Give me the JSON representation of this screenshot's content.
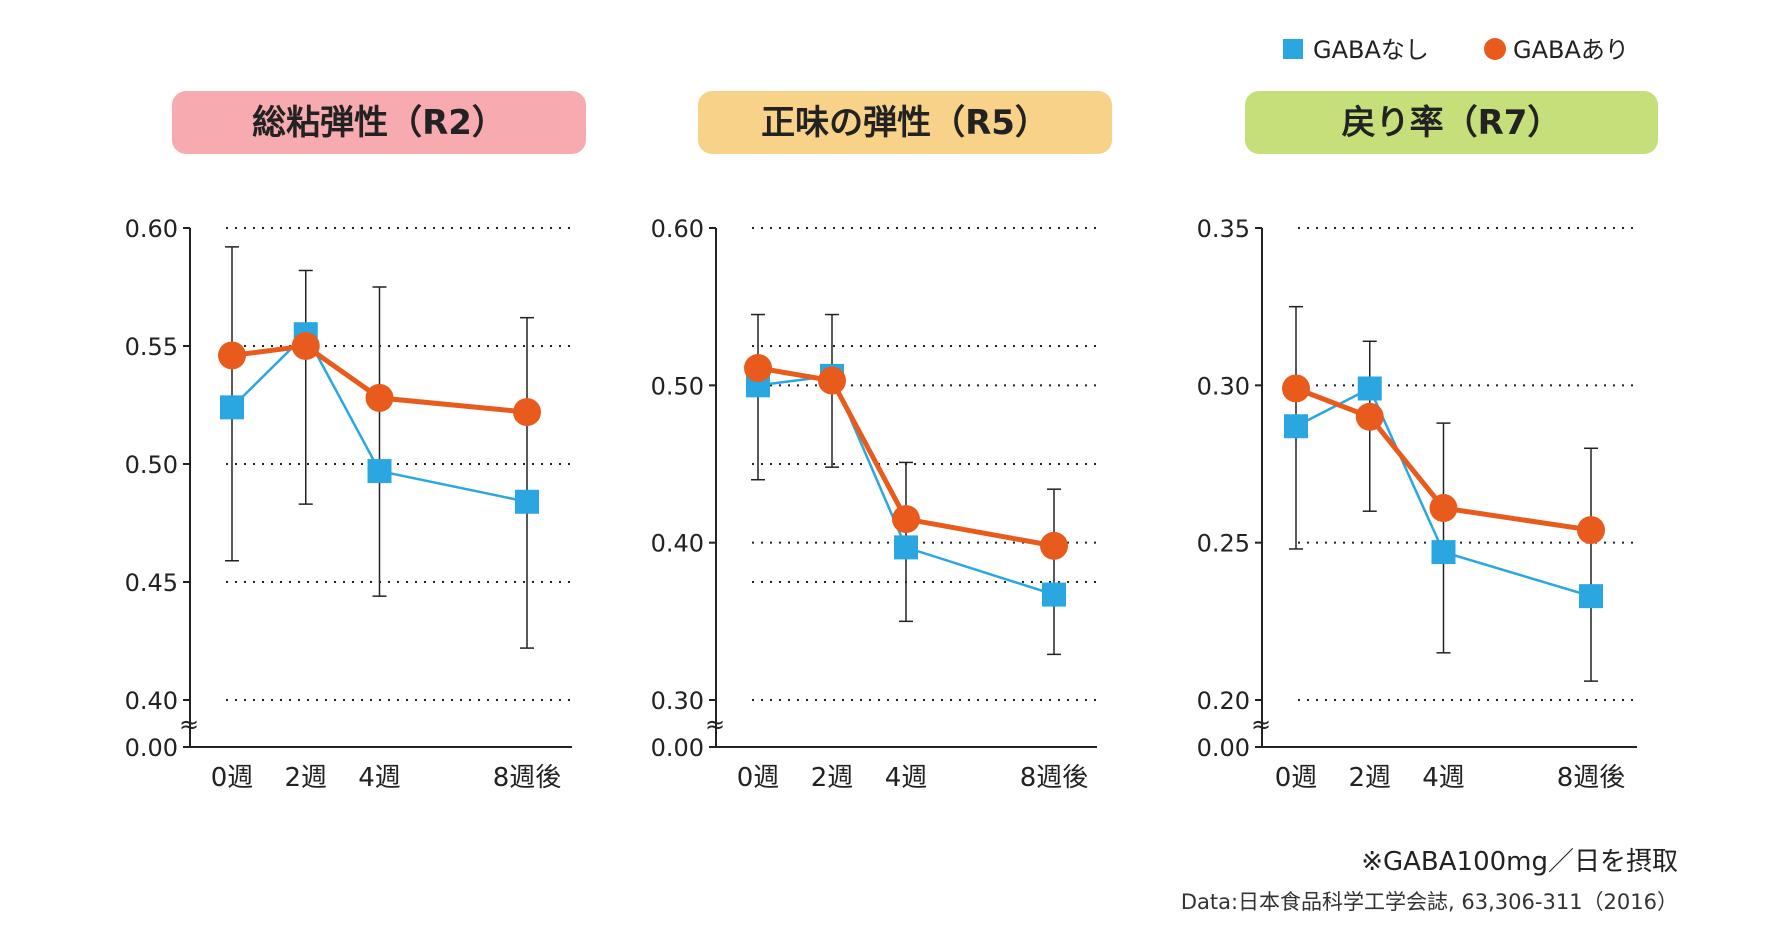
{
  "legend": [
    {
      "label": "GABAなし",
      "marker": "square",
      "color": "#2aa7e1"
    },
    {
      "label": "GABAあり",
      "marker": "circle",
      "color": "#e85b1c"
    }
  ],
  "axis_break_symbol": "≈",
  "chart_data": [
    {
      "type": "line",
      "title": "総粘弾性（R2）",
      "title_bg": "#f7aaaf",
      "categories": [
        "0週",
        "2週",
        "4週",
        "8週後"
      ],
      "x_positions": [
        0,
        2,
        4,
        8
      ],
      "ylim": [
        0.4,
        0.6
      ],
      "yticks": [
        0.4,
        0.45,
        0.5,
        0.55,
        0.6
      ],
      "ytick_labels": [
        "0.40",
        "0.45",
        "0.50",
        "0.55",
        "0.60"
      ],
      "y_zero_label": "0.00",
      "grid": "dotted",
      "series": [
        {
          "name": "GABAなし",
          "values": [
            0.524,
            0.555,
            0.497,
            0.484
          ],
          "error_low": [
            0.459,
            0.483,
            0.444,
            0.422
          ],
          "error_high": [
            0.592,
            0.582,
            0.575,
            0.562
          ]
        },
        {
          "name": "GABAあり",
          "values": [
            0.546,
            0.55,
            0.528,
            0.522
          ],
          "error_low": [
            0.459,
            0.483,
            0.444,
            0.422
          ],
          "error_high": [
            0.592,
            0.582,
            0.575,
            0.562
          ]
        }
      ]
    },
    {
      "type": "line",
      "title": "正味の弾性（R5）",
      "title_bg": "#f9d28a",
      "categories": [
        "0週",
        "2週",
        "4週",
        "8週後"
      ],
      "x_positions": [
        0,
        2,
        4,
        8
      ],
      "ylim": [
        0.3,
        0.6
      ],
      "yticks": [
        0.3,
        0.375,
        0.4,
        0.45,
        0.5,
        0.525,
        0.6
      ],
      "ytick_labels": [
        "0.30",
        "",
        "0.40",
        "",
        "0.50",
        "",
        "0.60"
      ],
      "y_zero_label": "0.00",
      "grid": "dotted",
      "series": [
        {
          "name": "GABAなし",
          "values": [
            0.5,
            0.506,
            0.397,
            0.367
          ],
          "error_low": [
            0.44,
            0.448,
            0.35,
            0.329
          ],
          "error_high": [
            0.545,
            0.545,
            0.451,
            0.434
          ]
        },
        {
          "name": "GABAあり",
          "values": [
            0.511,
            0.503,
            0.415,
            0.398
          ],
          "error_low": [
            0.44,
            0.448,
            0.35,
            0.329
          ],
          "error_high": [
            0.545,
            0.545,
            0.451,
            0.434
          ]
        }
      ]
    },
    {
      "type": "line",
      "title": "戻り率（R7）",
      "title_bg": "#c5df7a",
      "categories": [
        "0週",
        "2週",
        "4週",
        "8週後"
      ],
      "x_positions": [
        0,
        2,
        4,
        8
      ],
      "ylim": [
        0.2,
        0.35
      ],
      "yticks": [
        0.2,
        0.25,
        0.3,
        0.35
      ],
      "ytick_labels": [
        "0.20",
        "0.25",
        "0.30",
        "0.35"
      ],
      "y_zero_label": "0.00",
      "grid": "dotted",
      "series": [
        {
          "name": "GABAなし",
          "values": [
            0.287,
            0.299,
            0.247,
            0.233
          ],
          "error_low": [
            0.248,
            0.26,
            0.215,
            0.206
          ],
          "error_high": [
            0.325,
            0.314,
            0.288,
            0.28
          ]
        },
        {
          "name": "GABAあり",
          "values": [
            0.299,
            0.29,
            0.261,
            0.254
          ],
          "error_low": [
            0.248,
            0.26,
            0.215,
            0.206
          ],
          "error_high": [
            0.325,
            0.314,
            0.288,
            0.28
          ]
        }
      ]
    }
  ],
  "notes": {
    "dose": "※GABA100mg／日を摂取",
    "source": "Data:日本食品科学工学会誌, 63,306-311（2016）"
  }
}
